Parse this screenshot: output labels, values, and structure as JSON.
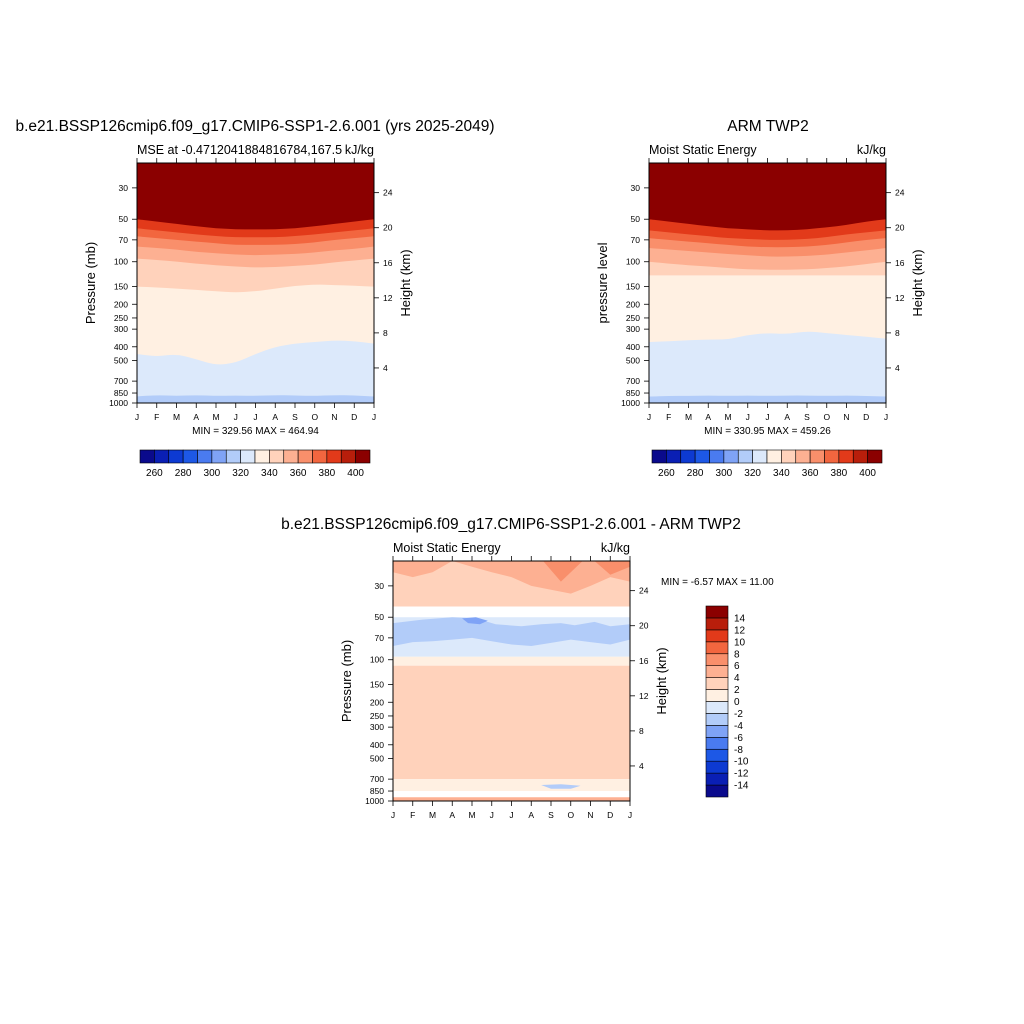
{
  "chart_data": [
    {
      "type": "heatmap",
      "title": "b.e21.BSSP126cmip6.f09_g17.CMIP6-SSP1-2.6.001 (yrs 2025-2049)",
      "left_label": "MSE at -0.4712041884816784,167.5",
      "right_label": "kJ/kg",
      "ylabel": "Pressure (mb)",
      "ylabel_right": "Height (km)",
      "x_ticks": [
        "J",
        "F",
        "M",
        "A",
        "M",
        "J",
        "J",
        "A",
        "S",
        "O",
        "N",
        "D",
        "J"
      ],
      "y_ticks": [
        30,
        50,
        70,
        100,
        150,
        200,
        250,
        300,
        400,
        500,
        700,
        850,
        1000
      ],
      "y_range": [
        1000,
        20
      ],
      "height_ticks": [
        4,
        8,
        12,
        16,
        20,
        24
      ],
      "stats": "MIN = 329.56 MAX = 464.94",
      "colorbar": {
        "orientation": "horizontal",
        "levels": [
          260,
          270,
          280,
          290,
          300,
          310,
          320,
          330,
          340,
          350,
          360,
          370,
          380,
          390,
          400
        ],
        "tick_labels": [
          "260",
          "280",
          "300",
          "320",
          "340",
          "360",
          "380",
          "400"
        ],
        "colors": [
          "#0a0a8c",
          "#0a1fb4",
          "#0d3ad2",
          "#1d58e6",
          "#4a7bf0",
          "#7fa3f6",
          "#b2ccf9",
          "#dce9fb",
          "#fff0e2",
          "#ffd2bb",
          "#fdb092",
          "#f98f6b",
          "#f2663f",
          "#e23a1a",
          "#b81e0b",
          "#8b0000"
        ]
      },
      "contours": [
        {
          "level": 390,
          "x": [
            0,
            1,
            2,
            3,
            4,
            5,
            6,
            7,
            8,
            9,
            10,
            11,
            12
          ],
          "p": [
            50,
            52,
            54,
            56,
            58,
            59,
            59,
            59,
            58,
            56,
            54,
            52,
            50
          ]
        },
        {
          "level": 380,
          "x": [
            0,
            1,
            2,
            3,
            4,
            5,
            6,
            7,
            8,
            9,
            10,
            11,
            12
          ],
          "p": [
            58,
            60,
            62,
            64,
            66,
            67,
            67,
            67,
            66,
            64,
            62,
            60,
            58
          ]
        },
        {
          "level": 370,
          "x": [
            0,
            1,
            2,
            3,
            4,
            5,
            6,
            7,
            8,
            9,
            10,
            11,
            12
          ],
          "p": [
            66,
            68,
            70,
            72,
            74,
            76,
            76,
            76,
            75,
            73,
            70,
            68,
            66
          ]
        },
        {
          "level": 360,
          "x": [
            0,
            1,
            2,
            3,
            4,
            5,
            6,
            7,
            8,
            9,
            10,
            11,
            12
          ],
          "p": [
            78,
            80,
            82,
            85,
            87,
            89,
            90,
            89,
            88,
            86,
            83,
            81,
            78
          ]
        },
        {
          "level": 350,
          "x": [
            0,
            1,
            2,
            3,
            4,
            5,
            6,
            7,
            8,
            9,
            10,
            11,
            12
          ],
          "p": [
            95,
            97,
            100,
            103,
            106,
            108,
            110,
            109,
            107,
            105,
            101,
            98,
            95
          ]
        },
        {
          "level": 340,
          "x": [
            0,
            1,
            2,
            3,
            4,
            5,
            6,
            7,
            8,
            9,
            10,
            11,
            12
          ],
          "p": [
            150,
            152,
            155,
            158,
            162,
            165,
            162,
            155,
            148,
            145,
            146,
            148,
            150
          ]
        },
        {
          "level": 330,
          "x": [
            0,
            1,
            2,
            3,
            4,
            5,
            6,
            7,
            8,
            9,
            10,
            11,
            12
          ],
          "p": [
            450,
            470,
            450,
            490,
            540,
            520,
            450,
            400,
            380,
            370,
            360,
            365,
            380
          ]
        },
        {
          "level": 320,
          "x": [
            0,
            1,
            2,
            3,
            4,
            5,
            6,
            7,
            8,
            9,
            10,
            11,
            12
          ],
          "p": [
            900,
            880,
            890,
            880,
            890,
            885,
            890,
            880,
            885,
            890,
            880,
            885,
            900
          ]
        }
      ]
    },
    {
      "type": "heatmap",
      "title": "ARM TWP2",
      "left_label": "Moist Static Energy",
      "right_label": "kJ/kg",
      "ylabel": "pressure level",
      "ylabel_right": "Height (km)",
      "x_ticks": [
        "J",
        "F",
        "M",
        "A",
        "M",
        "J",
        "J",
        "A",
        "S",
        "O",
        "N",
        "D",
        "J"
      ],
      "y_ticks": [
        30,
        50,
        70,
        100,
        150,
        200,
        250,
        300,
        400,
        500,
        700,
        850,
        1000
      ],
      "y_range": [
        1000,
        20
      ],
      "height_ticks": [
        4,
        8,
        12,
        16,
        20,
        24
      ],
      "stats": "MIN = 330.95 MAX = 459.26",
      "colorbar": {
        "orientation": "horizontal",
        "levels": [
          260,
          270,
          280,
          290,
          300,
          310,
          320,
          330,
          340,
          350,
          360,
          370,
          380,
          390,
          400
        ],
        "tick_labels": [
          "260",
          "280",
          "300",
          "320",
          "340",
          "360",
          "380",
          "400"
        ],
        "colors": [
          "#0a0a8c",
          "#0a1fb4",
          "#0d3ad2",
          "#1d58e6",
          "#4a7bf0",
          "#7fa3f6",
          "#b2ccf9",
          "#dce9fb",
          "#fff0e2",
          "#ffd2bb",
          "#fdb092",
          "#f98f6b",
          "#f2663f",
          "#e23a1a",
          "#b81e0b",
          "#8b0000"
        ]
      },
      "contours": [
        {
          "level": 390,
          "x": [
            0,
            1,
            2,
            3,
            4,
            5,
            6,
            7,
            8,
            9,
            10,
            11,
            12
          ],
          "p": [
            50,
            52,
            54,
            56,
            58,
            59,
            60,
            60,
            59,
            57,
            55,
            52,
            50
          ]
        },
        {
          "level": 380,
          "x": [
            0,
            1,
            2,
            3,
            4,
            5,
            6,
            7,
            8,
            9,
            10,
            11,
            12
          ],
          "p": [
            60,
            62,
            64,
            66,
            68,
            69,
            70,
            70,
            69,
            67,
            64,
            62,
            60
          ]
        },
        {
          "level": 370,
          "x": [
            0,
            1,
            2,
            3,
            4,
            5,
            6,
            7,
            8,
            9,
            10,
            11,
            12
          ],
          "p": [
            68,
            70,
            72,
            74,
            76,
            78,
            79,
            79,
            78,
            76,
            73,
            70,
            68
          ]
        },
        {
          "level": 360,
          "x": [
            0,
            1,
            2,
            3,
            4,
            5,
            6,
            7,
            8,
            9,
            10,
            11,
            12
          ],
          "p": [
            80,
            82,
            84,
            86,
            88,
            90,
            92,
            92,
            91,
            89,
            86,
            83,
            80
          ]
        },
        {
          "level": 350,
          "x": [
            0,
            1,
            2,
            3,
            4,
            5,
            6,
            7,
            8,
            9,
            10,
            11,
            12
          ],
          "p": [
            100,
            103,
            106,
            108,
            111,
            113,
            114,
            114,
            113,
            111,
            108,
            104,
            100
          ]
        },
        {
          "level": 340,
          "x": [
            0,
            1,
            2,
            3,
            4,
            5,
            6,
            7,
            8,
            9,
            10,
            11,
            12
          ],
          "p": [
            125,
            125,
            125,
            125,
            125,
            125,
            125,
            125,
            125,
            125,
            125,
            125,
            125
          ]
        },
        {
          "level": 330,
          "x": [
            0,
            1,
            2,
            3,
            4,
            5,
            6,
            7,
            8,
            9,
            10,
            11,
            12
          ],
          "p": [
            370,
            365,
            360,
            355,
            355,
            330,
            320,
            325,
            310,
            320,
            330,
            340,
            350
          ]
        },
        {
          "level": 320,
          "x": [
            0,
            1,
            2,
            3,
            4,
            5,
            6,
            7,
            8,
            9,
            10,
            11,
            12
          ],
          "p": [
            900,
            890,
            890,
            885,
            890,
            885,
            890,
            885,
            885,
            890,
            885,
            890,
            900
          ]
        }
      ]
    },
    {
      "type": "heatmap",
      "title": "b.e21.BSSP126cmip6.f09_g17.CMIP6-SSP1-2.6.001 - ARM TWP2",
      "left_label": "Moist Static Energy",
      "right_label": "kJ/kg",
      "ylabel": "Pressure (mb)",
      "ylabel_right": "Height (km)",
      "x_ticks": [
        "J",
        "F",
        "M",
        "A",
        "M",
        "J",
        "J",
        "A",
        "S",
        "O",
        "N",
        "D",
        "J"
      ],
      "y_ticks": [
        30,
        50,
        70,
        100,
        150,
        200,
        250,
        300,
        400,
        500,
        700,
        850,
        1000
      ],
      "y_range": [
        1000,
        20
      ],
      "height_ticks": [
        4,
        8,
        12,
        16,
        20,
        24
      ],
      "stats": "MIN =  -6.57 MAX =  11.00",
      "colorbar": {
        "orientation": "vertical",
        "levels": [
          -14,
          -12,
          -10,
          -8,
          -6,
          -4,
          -2,
          0,
          2,
          4,
          6,
          8,
          10,
          12,
          14
        ],
        "tick_labels": [
          "-14",
          "-12",
          "-10",
          "-8",
          "-6",
          "-4",
          "-2",
          "0",
          "2",
          "4",
          "6",
          "8",
          "10",
          "12",
          "14"
        ],
        "colors": [
          "#0a0a8c",
          "#0a1fb4",
          "#0d3ad2",
          "#1d58e6",
          "#4a7bf0",
          "#7fa3f6",
          "#b2ccf9",
          "#dce9fb",
          "#fff0e2",
          "#ffd2bb",
          "#fdb092",
          "#f98f6b",
          "#f2663f",
          "#e23a1a",
          "#b81e0b",
          "#8b0000"
        ]
      },
      "regions": [
        {
          "value": 7,
          "x": [
            4.7,
            5.6,
            6.2,
            6.0,
            5.2,
            4.6,
            4.7
          ],
          "p": [
            490,
            470,
            500,
            560,
            600,
            560,
            490
          ]
        },
        {
          "value": 5,
          "x": [
            4.2,
            5.0,
            6.0,
            6.9,
            7.4,
            7.0,
            6.3,
            5.5,
            4.7,
            4.0,
            3.6,
            3.8,
            4.2
          ],
          "p": [
            400,
            300,
            160,
            150,
            160,
            280,
            380,
            430,
            560,
            620,
            560,
            480,
            400
          ]
        },
        {
          "value": 5,
          "x": [
            0.3,
            0.9,
            0.6,
            0.3
          ],
          "p": [
            470,
            500,
            560,
            470
          ]
        },
        {
          "value": 5,
          "x": [
            10.2,
            10.8,
            10.5,
            10.1,
            10.2
          ],
          "p": [
            470,
            500,
            570,
            520,
            470
          ]
        },
        {
          "value": 3,
          "x": [
            0,
            12,
            12,
            0
          ],
          "p": [
            110,
            110,
            700,
            700
          ]
        },
        {
          "value": 1,
          "x": [
            0,
            12,
            12,
            0
          ],
          "p": [
            95,
            95,
            110,
            110
          ]
        },
        {
          "value": 1,
          "x": [
            0,
            12,
            12,
            0
          ],
          "p": [
            700,
            700,
            850,
            850
          ]
        },
        {
          "value": -1,
          "x": [
            0,
            12,
            12,
            0
          ],
          "p": [
            50,
            50,
            95,
            95
          ]
        },
        {
          "value": -3,
          "x": [
            0,
            1.5,
            3,
            4.2,
            5.2,
            6.5,
            7.5,
            8.5,
            9.2,
            10.2,
            11,
            12,
            12,
            11,
            10,
            9,
            8,
            7,
            6,
            5,
            4,
            3,
            2,
            1,
            0
          ],
          "p": [
            55,
            52,
            50,
            51,
            56,
            58,
            56,
            55,
            57,
            54,
            58,
            56,
            72,
            78,
            75,
            72,
            76,
            80,
            78,
            74,
            70,
            72,
            74,
            75,
            80
          ]
        },
        {
          "value": -5,
          "x": [
            3.5,
            4.2,
            4.8,
            4.4,
            3.8,
            3.5
          ],
          "p": [
            51,
            50,
            53,
            56,
            55,
            51
          ]
        },
        {
          "value": -3,
          "x": [
            7.5,
            8.5,
            9.5,
            9.0,
            8.0,
            7.5
          ],
          "p": [
            770,
            760,
            780,
            820,
            820,
            770
          ]
        },
        {
          "value": 3,
          "x": [
            0,
            12,
            12,
            0
          ],
          "p": [
            20,
            20,
            42,
            42
          ]
        },
        {
          "value": 5,
          "x": [
            3,
            4,
            5,
            6,
            7,
            8,
            9,
            10,
            11,
            12,
            12,
            0,
            0,
            1,
            2,
            3
          ],
          "p": [
            20,
            22,
            24,
            26,
            30,
            32,
            34,
            30,
            26,
            28,
            20,
            20,
            24,
            26,
            24,
            20
          ]
        },
        {
          "value": 7,
          "x": [
            7.6,
            8.5,
            9.6,
            9.0,
            7.6
          ],
          "p": [
            20,
            28,
            20,
            20,
            20
          ]
        },
        {
          "value": 7,
          "x": [
            10.2,
            11,
            12,
            12,
            10.2
          ],
          "p": [
            20,
            25,
            22,
            20,
            20
          ]
        },
        {
          "value": 5,
          "x": [
            0,
            12,
            12,
            0
          ],
          "p": [
            940,
            940,
            1000,
            1000
          ]
        }
      ]
    }
  ]
}
